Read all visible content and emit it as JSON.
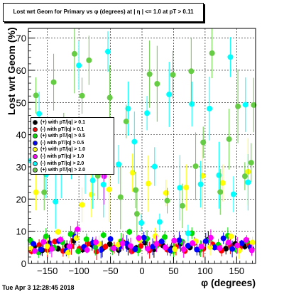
{
  "title": "Lost wrt Geom for Primary vs φ (degrees) at | η | <= 1.0 at pT > 0.11",
  "footer": "Tue Apr  3 12:28:45 2018",
  "chart_data": {
    "type": "scatter",
    "title": "Lost wrt Geom for Primary vs φ (degrees) at | η | <= 1.0 at pT > 0.11",
    "xlabel": "φ (degrees)",
    "ylabel": "Lost wrt Geom (%)",
    "xlim": [
      -180,
      180
    ],
    "ylim": [
      0,
      73
    ],
    "xticks": [
      -150,
      -100,
      -50,
      0,
      50,
      100,
      150
    ],
    "yticks": [
      0,
      10,
      20,
      30,
      40,
      50,
      60,
      70
    ],
    "grid": true,
    "legend_position": "middle-left",
    "series": [
      {
        "name": "(+) with pT/|q| > 0.1",
        "color": "#000000",
        "points": [
          [
            -171,
            5.2
          ],
          [
            -158,
            4.1
          ],
          [
            -147,
            6.3
          ],
          [
            -133,
            4.6
          ],
          [
            -119,
            5.4
          ],
          [
            -108,
            7.1
          ],
          [
            -94,
            4.3
          ],
          [
            -79,
            5.8
          ],
          [
            -63,
            4.5
          ],
          [
            -51,
            6.0
          ],
          [
            -37,
            4.2
          ],
          [
            -22,
            5.1
          ],
          [
            -9,
            4.8
          ],
          [
            5,
            6.5
          ],
          [
            19,
            4.4
          ],
          [
            33,
            5.6
          ],
          [
            47,
            4.7
          ],
          [
            61,
            6.2
          ],
          [
            76,
            5.0
          ],
          [
            91,
            4.3
          ],
          [
            105,
            7.4
          ],
          [
            119,
            5.2
          ],
          [
            133,
            4.6
          ],
          [
            148,
            6.1
          ],
          [
            163,
            5.3
          ],
          [
            174,
            4.4
          ]
        ]
      },
      {
        "name": "(-) with pT/|q| > 0.1",
        "color": "#ff0000",
        "points": [
          [
            -175,
            3.8
          ],
          [
            -163,
            5.7
          ],
          [
            -150,
            4.2
          ],
          [
            -138,
            6.8
          ],
          [
            -125,
            3.9
          ],
          [
            -112,
            5.3
          ],
          [
            -99,
            4.6
          ],
          [
            -86,
            6.1
          ],
          [
            -72,
            3.7
          ],
          [
            -58,
            5.2
          ],
          [
            -44,
            4.9
          ],
          [
            -30,
            6.6
          ],
          [
            -16,
            3.8
          ],
          [
            -2,
            5.4
          ],
          [
            12,
            4.1
          ],
          [
            26,
            6.0
          ],
          [
            40,
            4.3
          ],
          [
            54,
            5.1
          ],
          [
            68,
            3.9
          ],
          [
            83,
            6.4
          ],
          [
            97,
            4.5
          ],
          [
            112,
            5.9
          ],
          [
            126,
            4.0
          ],
          [
            140,
            5.5
          ],
          [
            155,
            4.8
          ],
          [
            169,
            6.2
          ]
        ]
      },
      {
        "name": "(+) with pT/|q| > 0.5",
        "color": "#00dd00",
        "points": [
          [
            -177,
            7.2
          ],
          [
            -164,
            3.5
          ],
          [
            -152,
            8.4
          ],
          [
            -139,
            4.9
          ],
          [
            -126,
            6.6
          ],
          [
            -113,
            9.1
          ],
          [
            -101,
            3.8
          ],
          [
            -88,
            7.5
          ],
          [
            -74,
            5.1
          ],
          [
            -61,
            8.8
          ],
          [
            -47,
            4.4
          ],
          [
            -33,
            6.9
          ],
          [
            -20,
            9.8
          ],
          [
            -6,
            4.1
          ],
          [
            8,
            7.7
          ],
          [
            22,
            5.3
          ],
          [
            36,
            8.2
          ],
          [
            50,
            3.9
          ],
          [
            64,
            6.7
          ],
          [
            79,
            9.4
          ],
          [
            93,
            4.6
          ],
          [
            107,
            7.3
          ],
          [
            121,
            5.8
          ],
          [
            136,
            8.6
          ],
          [
            150,
            4.2
          ],
          [
            166,
            7.0
          ]
        ]
      },
      {
        "name": "(-) with pT/|q| > 0.5",
        "color": "#0000ff",
        "points": [
          [
            -172,
            6.1
          ],
          [
            -160,
            4.3
          ],
          [
            -146,
            5.6
          ],
          [
            -132,
            7.0
          ],
          [
            -120,
            4.0
          ],
          [
            -106,
            8.3
          ],
          [
            -92,
            5.1
          ],
          [
            -78,
            6.4
          ],
          [
            -65,
            4.2
          ],
          [
            -50,
            7.6
          ],
          [
            -36,
            5.0
          ],
          [
            -24,
            6.2
          ],
          [
            -11,
            4.4
          ],
          [
            3,
            8.0
          ],
          [
            17,
            5.2
          ],
          [
            31,
            6.8
          ],
          [
            45,
            4.1
          ],
          [
            59,
            7.2
          ],
          [
            73,
            5.5
          ],
          [
            87,
            4.3
          ],
          [
            101,
            6.9
          ],
          [
            115,
            5.0
          ],
          [
            129,
            7.8
          ],
          [
            143,
            4.5
          ],
          [
            158,
            6.3
          ],
          [
            172,
            5.1
          ]
        ]
      },
      {
        "name": "(+) with pT/|q| > 1.0",
        "color": "#ffff00",
        "points": [
          [
            -176,
            4.6
          ],
          [
            -168,
            22.1
          ],
          [
            -150,
            5.3
          ],
          [
            -133,
            9.8
          ],
          [
            -117,
            3.4
          ],
          [
            -104,
            7.9
          ],
          [
            -95,
            18.2
          ],
          [
            -80,
            21.4
          ],
          [
            -68,
            6.1
          ],
          [
            -52,
            23.0
          ],
          [
            -38,
            5.8
          ],
          [
            -15,
            28.2
          ],
          [
            -4,
            7.3
          ],
          [
            10,
            24.8
          ],
          [
            21,
            8.5
          ],
          [
            38,
            21.9
          ],
          [
            52,
            4.4
          ],
          [
            70,
            23.6
          ],
          [
            85,
            6.9
          ],
          [
            96,
            27.2
          ],
          [
            108,
            5.1
          ],
          [
            128,
            25.0
          ],
          [
            141,
            8.4
          ],
          [
            154,
            4.0
          ],
          [
            168,
            28.5
          ],
          [
            175,
            6.5
          ]
        ]
      },
      {
        "name": "(-) with pT/|q| > 1.0",
        "color": "#ff00ff",
        "points": [
          [
            -170,
            3.9
          ],
          [
            -156,
            6.7
          ],
          [
            -143,
            4.5
          ],
          [
            -129,
            7.4
          ],
          [
            -115,
            5.3
          ],
          [
            -102,
            10.6
          ],
          [
            -87,
            4.2
          ],
          [
            -73,
            6.6
          ],
          [
            -60,
            27.1
          ],
          [
            -45,
            4.7
          ],
          [
            -31,
            6.2
          ],
          [
            -18,
            5.4
          ],
          [
            -5,
            7.9
          ],
          [
            9,
            4.6
          ],
          [
            23,
            6.1
          ],
          [
            37,
            5.0
          ],
          [
            51,
            7.1
          ],
          [
            66,
            4.4
          ],
          [
            80,
            6.3
          ],
          [
            94,
            5.2
          ],
          [
            109,
            8.0
          ],
          [
            123,
            4.8
          ],
          [
            137,
            6.5
          ],
          [
            151,
            5.6
          ],
          [
            165,
            7.3
          ],
          [
            174,
            4.1
          ]
        ]
      },
      {
        "name": "(-) with pT/|q| > 2.0",
        "color": "#00ffff",
        "points": [
          [
            -176,
            31.9
          ],
          [
            -163,
            46.5
          ],
          [
            -152,
            27.7
          ],
          [
            -137,
            19.2
          ],
          [
            -128,
            30.8
          ],
          [
            -112,
            30.7
          ],
          [
            -100,
            61.5
          ],
          [
            -90,
            29.1
          ],
          [
            -78,
            25.8
          ],
          [
            -61,
            24.5
          ],
          [
            -54,
            65.8
          ],
          [
            -37,
            30.8
          ],
          [
            -22,
            48.1
          ],
          [
            -12,
            37.8
          ],
          [
            -1,
            12.6
          ],
          [
            8,
            46.7
          ],
          [
            20,
            30.1
          ],
          [
            28,
            12.9
          ],
          [
            43,
            52.5
          ],
          [
            60,
            23.5
          ],
          [
            73,
            9.4
          ],
          [
            79,
            49.5
          ],
          [
            93,
            24.6
          ],
          [
            107,
            48.1
          ],
          [
            122,
            27.4
          ],
          [
            140,
            64.1
          ],
          [
            145,
            21.5
          ],
          [
            164,
            49.3
          ],
          [
            168,
            25.2
          ]
        ]
      },
      {
        "name": "(+) with pT/|q| > 2.0",
        "color": "#66cc44",
        "points": [
          [
            -168,
            52.2
          ],
          [
            -155,
            22.1
          ],
          [
            -140,
            56.3
          ],
          [
            -124,
            37.4
          ],
          [
            -107,
            65.1
          ],
          [
            -95,
            52.1
          ],
          [
            -84,
            63.1
          ],
          [
            -70,
            27.2
          ],
          [
            -51,
            51.5
          ],
          [
            -34,
            20.6
          ],
          [
            -25,
            44.1
          ],
          [
            -10,
            22.8
          ],
          [
            -8,
            15.4
          ],
          [
            12,
            58.8
          ],
          [
            24,
            55.8
          ],
          [
            40,
            19.5
          ],
          [
            49,
            58.6
          ],
          [
            64,
            17.9
          ],
          [
            78,
            59.7
          ],
          [
            85,
            30.2
          ],
          [
            97,
            37.6
          ],
          [
            111,
            65.3
          ],
          [
            124,
            22.2
          ],
          [
            138,
            38.6
          ],
          [
            152,
            48.8
          ],
          [
            163,
            27.1
          ],
          [
            173,
            31.3
          ],
          [
            177,
            49.2
          ]
        ]
      }
    ]
  }
}
